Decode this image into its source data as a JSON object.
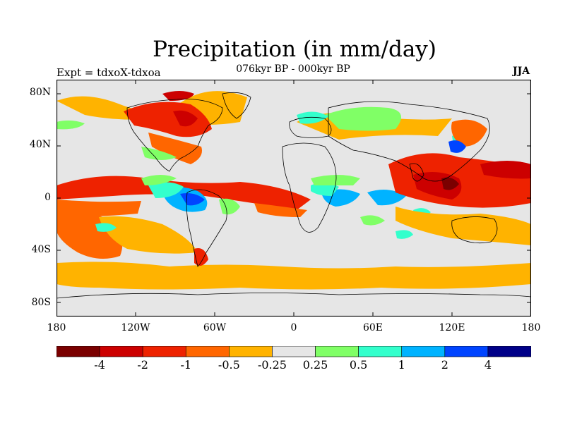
{
  "title": "Precipitation (in mm/day)",
  "experiment_label": "Expt = tdxoX-tdxoa",
  "period_label": "076kyr BP - 000kyr BP",
  "season_label": "JJA",
  "y_ticks": [
    "80N",
    "40N",
    "0",
    "40S",
    "80S"
  ],
  "x_ticks": [
    "180",
    "120W",
    "60W",
    "0",
    "60E",
    "120E",
    "180"
  ],
  "colorbar": {
    "colors": [
      "#7a0000",
      "#cc0000",
      "#ee2200",
      "#ff6600",
      "#ffb300",
      "#e6e6e6",
      "#80ff66",
      "#33ffcc",
      "#00b3ff",
      "#0044ff",
      "#000088"
    ],
    "labels": [
      "-4",
      "-2",
      "-1",
      "-0.5",
      "-0.25",
      "0.25",
      "0.5",
      "1",
      "2",
      "4"
    ]
  },
  "colors": {
    "background_ocean": "#e6e6e6",
    "coastline": "#000000"
  }
}
